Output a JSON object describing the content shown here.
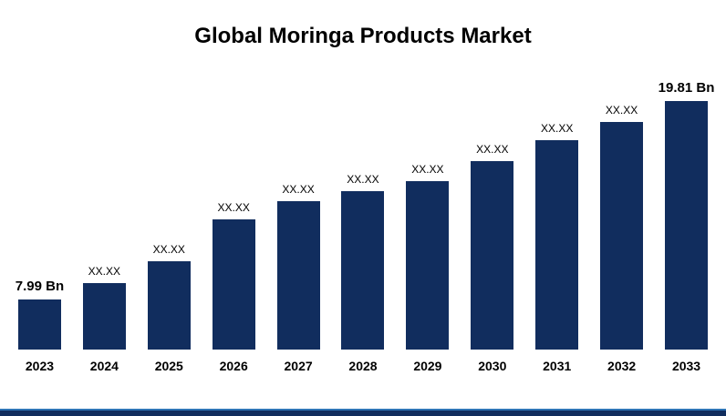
{
  "title": "Global Moringa Products Market",
  "colors": {
    "bar": "#112d5e",
    "footer_thin": "#2e75b6",
    "footer_thick": "#112d5e",
    "text": "#000000",
    "background": "#ffffff"
  },
  "chart_data": {
    "type": "bar",
    "title": "Global Moringa Products Market",
    "xlabel": "",
    "ylabel": "",
    "unit": "Bn (USD Billion)",
    "legend": null,
    "grid": false,
    "categories": [
      "2023",
      "2024",
      "2025",
      "2026",
      "2027",
      "2028",
      "2029",
      "2030",
      "2031",
      "2032",
      "2033"
    ],
    "bar_labels": [
      "7.99 Bn",
      "XX.XX",
      "XX.XX",
      "XX.XX",
      "XX.XX",
      "XX.XX",
      "XX.XX",
      "XX.XX",
      "XX.XX",
      "XX.XX",
      "19.81 Bn"
    ],
    "values_bn": [
      7.99,
      null,
      null,
      null,
      null,
      null,
      null,
      null,
      null,
      null,
      19.81
    ],
    "relative_heights_pct": [
      20.1,
      26.7,
      35.5,
      52.4,
      59.7,
      63.7,
      67.8,
      75.8,
      84.2,
      91.6,
      100
    ],
    "emphasized_label_indices": [
      0,
      10
    ],
    "bar_color": "#112d5e"
  }
}
